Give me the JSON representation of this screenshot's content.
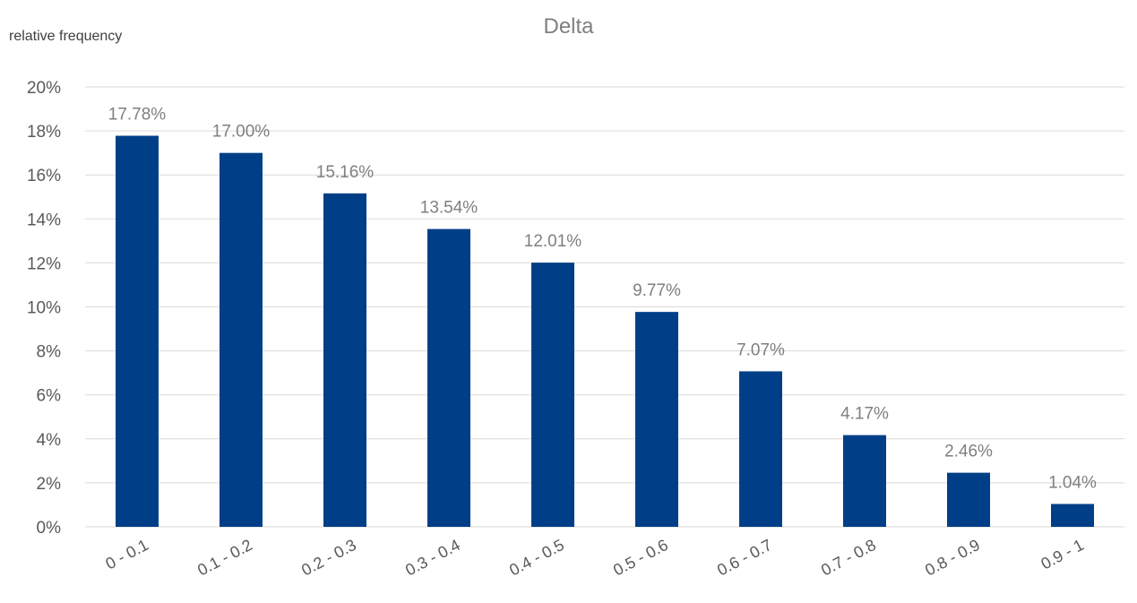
{
  "chart_data": {
    "type": "bar",
    "title": "Delta",
    "xlabel": "",
    "ylabel": "relative frequency",
    "categories": [
      "0 - 0.1",
      "0.1 - 0.2",
      "0.2 - 0.3",
      "0.3 - 0.4",
      "0.4 - 0.5",
      "0.5 - 0.6",
      "0.6 - 0.7",
      "0.7 - 0.8",
      "0.8 - 0.9",
      "0.9 - 1"
    ],
    "values": [
      17.78,
      17.0,
      15.16,
      13.54,
      12.01,
      9.77,
      7.07,
      4.17,
      2.46,
      1.04
    ],
    "data_labels": [
      "17.78%",
      "17.00%",
      "15.16%",
      "13.54%",
      "12.01%",
      "9.77%",
      "7.07%",
      "4.17%",
      "2.46%",
      "1.04%"
    ],
    "ylim": [
      0,
      20
    ],
    "yticks": [
      "0%",
      "2%",
      "4%",
      "6%",
      "8%",
      "10%",
      "12%",
      "14%",
      "16%",
      "18%",
      "20%"
    ],
    "grid": true,
    "legend": "none",
    "colors": {
      "bar": "#003f87",
      "grid": "#d9d9d9",
      "tick_text": "#595959",
      "data_label": "#7f7f7f",
      "title": "#7f7f7f"
    }
  }
}
